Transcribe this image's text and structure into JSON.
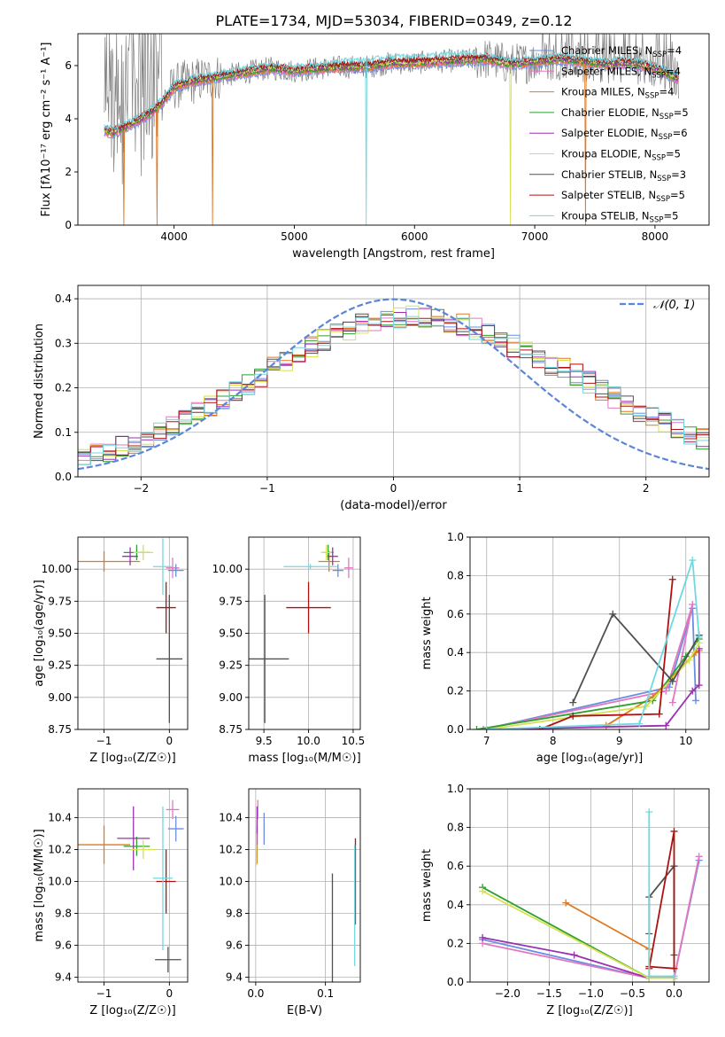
{
  "title": "PLATE=1734, MJD=53034, FIBERID=0349, z=0.12",
  "colors": {
    "Chabrier MILES": "#6b8ee0",
    "Salpeter MILES": "#e377c2",
    "Kroupa MILES": "#e07820",
    "Chabrier ELODIE": "#2ca02c",
    "Salpeter ELODIE": "#9b30b0",
    "Kroupa ELODIE": "#d6e050",
    "Chabrier STELIB": "#505050",
    "Salpeter STELIB": "#b01010",
    "Kroupa STELIB": "#70d8e0",
    "normal": "#5a86d8"
  },
  "chart_data": [
    {
      "type": "line",
      "name": "spectrum",
      "xlabel": "wavelength [Angstrom, rest frame]",
      "ylabel": "Flux [fλ10⁻¹⁷ erg cm⁻² s⁻¹ A⁻¹]",
      "xlim": [
        3200,
        8450
      ],
      "ylim": [
        0,
        7.2
      ],
      "xticks": [
        4000,
        5000,
        6000,
        7000,
        8000
      ],
      "yticks": [
        0,
        2,
        4,
        6
      ],
      "grid": false,
      "legend_position": "top-right",
      "legend": [
        {
          "model": "Chabrier MILES",
          "label": "Chabrier MILES, N_SSP=4"
        },
        {
          "model": "Salpeter MILES",
          "label": "Salpeter MILES, N_SSP=4"
        },
        {
          "model": "Kroupa MILES",
          "label": "Kroupa MILES, N_SSP=4"
        },
        {
          "model": "Chabrier ELODIE",
          "label": "Chabrier ELODIE, N_SSP=5"
        },
        {
          "model": "Salpeter ELODIE",
          "label": "Salpeter ELODIE, N_SSP=6"
        },
        {
          "model": "Kroupa ELODIE",
          "label": "Kroupa ELODIE, N_SSP=5"
        },
        {
          "model": "Chabrier STELIB",
          "label": "Chabrier STELIB, N_SSP=3"
        },
        {
          "model": "Salpeter STELIB",
          "label": "Salpeter STELIB, N_SSP=5"
        },
        {
          "model": "Kroupa STELIB",
          "label": "Kroupa STELIB, N_SSP=5"
        }
      ],
      "data_color": "#808080",
      "continuum": {
        "x": [
          3420,
          3500,
          3600,
          3700,
          3800,
          3900,
          4000,
          4100,
          4200,
          4400,
          4600,
          4800,
          5000,
          5200,
          5400,
          5600,
          5800,
          6000,
          6200,
          6400,
          6600,
          6800,
          7000,
          7200,
          7400,
          7600,
          7800,
          8000,
          8200
        ],
        "y": [
          3.55,
          3.5,
          3.7,
          3.95,
          4.2,
          4.6,
          5.2,
          5.35,
          5.45,
          5.6,
          5.75,
          5.9,
          5.8,
          5.9,
          5.95,
          5.95,
          6.1,
          6.1,
          6.15,
          6.2,
          6.25,
          6.05,
          6.15,
          6.25,
          6.15,
          6.05,
          6.1,
          5.9,
          5.5
        ]
      },
      "drops": [
        {
          "x": 3580,
          "model": "Kroupa MILES"
        },
        {
          "x": 3860,
          "model": "Kroupa MILES"
        },
        {
          "x": 4320,
          "model": "Kroupa MILES"
        },
        {
          "x": 5600,
          "model": "Kroupa STELIB"
        },
        {
          "x": 6800,
          "model": "Kroupa ELODIE"
        },
        {
          "x": 7420,
          "model": "Kroupa MILES"
        }
      ]
    },
    {
      "type": "histogram",
      "name": "residuals",
      "xlabel": "(data-model)/error",
      "ylabel": "Normed distribution",
      "xlim": [
        -2.5,
        2.5
      ],
      "ylim": [
        0,
        0.43
      ],
      "xticks": [
        -2,
        -1,
        0,
        1,
        2
      ],
      "yticks": [
        0,
        0.1,
        0.2,
        0.3,
        0.4
      ],
      "grid": true,
      "legend_position": "top-right",
      "normal_label": "𝒩(0, 1)",
      "bin_width": 0.1,
      "bin_start": -2.5
    },
    {
      "type": "scatter",
      "name": "age-vs-Z",
      "xlabel": "Z [log₁₀(Z/Z☉)]",
      "ylabel": "age  [log₁₀(age/yr)]",
      "xlim": [
        -1.4,
        0.28
      ],
      "ylim": [
        8.75,
        10.25
      ],
      "xticks": [
        -1,
        0
      ],
      "yticks": [
        8.75,
        9.0,
        9.25,
        9.5,
        9.75,
        10.0
      ],
      "grid": true,
      "points": [
        {
          "model": "Kroupa MILES",
          "x": -1.0,
          "y": 10.06,
          "xerr": 0.55,
          "yerr": 0.08
        },
        {
          "model": "Salpeter MILES",
          "x": 0.05,
          "y": 10.01,
          "xerr": 0.1,
          "yerr": 0.08
        },
        {
          "model": "Chabrier MILES",
          "x": 0.1,
          "y": 9.99,
          "xerr": 0.12,
          "yerr": 0.05
        },
        {
          "model": "Chabrier ELODIE",
          "x": -0.5,
          "y": 10.13,
          "xerr": 0.2,
          "yerr": 0.06
        },
        {
          "model": "Salpeter ELODIE",
          "x": -0.6,
          "y": 10.1,
          "xerr": 0.12,
          "yerr": 0.07
        },
        {
          "model": "Kroupa ELODIE",
          "x": -0.4,
          "y": 10.13,
          "xerr": 0.15,
          "yerr": 0.06
        },
        {
          "model": "Chabrier STELIB",
          "x": 0.0,
          "y": 9.3,
          "xerr": 0.2,
          "yerr": 0.5
        },
        {
          "model": "Salpeter STELIB",
          "x": -0.05,
          "y": 9.7,
          "xerr": 0.15,
          "yerr": 0.2
        },
        {
          "model": "Kroupa STELIB",
          "x": -0.1,
          "y": 10.02,
          "xerr": 0.15,
          "yerr": 0.22
        }
      ]
    },
    {
      "type": "scatter",
      "name": "age-vs-mass",
      "xlabel": "mass [log₁₀(M/M☉)]",
      "ylabel": "",
      "xlim": [
        9.33,
        10.58
      ],
      "ylim": [
        8.75,
        10.25
      ],
      "xticks": [
        9.5,
        10.0,
        10.5
      ],
      "yticks": [
        8.75,
        9.0,
        9.25,
        9.5,
        9.75,
        10.0
      ],
      "grid": true,
      "points": [
        {
          "model": "Kroupa MILES",
          "x": 10.23,
          "y": 10.06,
          "xerr": 0.12,
          "yerr": 0.08
        },
        {
          "model": "Salpeter MILES",
          "x": 10.45,
          "y": 10.01,
          "xerr": 0.05,
          "yerr": 0.08
        },
        {
          "model": "Chabrier MILES",
          "x": 10.33,
          "y": 9.99,
          "xerr": 0.06,
          "yerr": 0.05
        },
        {
          "model": "Chabrier ELODIE",
          "x": 10.22,
          "y": 10.13,
          "xerr": 0.06,
          "yerr": 0.06
        },
        {
          "model": "Salpeter ELODIE",
          "x": 10.27,
          "y": 10.1,
          "xerr": 0.06,
          "yerr": 0.07
        },
        {
          "model": "Kroupa ELODIE",
          "x": 10.2,
          "y": 10.13,
          "xerr": 0.06,
          "yerr": 0.06
        },
        {
          "model": "Chabrier STELIB",
          "x": 9.51,
          "y": 9.3,
          "xerr": 0.27,
          "yerr": 0.5
        },
        {
          "model": "Salpeter STELIB",
          "x": 10.0,
          "y": 9.7,
          "xerr": 0.25,
          "yerr": 0.2
        },
        {
          "model": "Kroupa STELIB",
          "x": 10.02,
          "y": 10.02,
          "xerr": 0.3,
          "yerr": 0.02
        }
      ]
    },
    {
      "type": "line",
      "name": "weight-vs-age",
      "xlabel": "age  [log₁₀(age/yr)]",
      "ylabel": "mass weight",
      "xlim": [
        6.75,
        10.35
      ],
      "ylim": [
        0,
        1.0
      ],
      "xticks": [
        7,
        8,
        9,
        10
      ],
      "yticks": [
        0,
        0.2,
        0.4,
        0.6,
        0.8,
        1.0
      ],
      "grid": true,
      "series": [
        {
          "model": "Chabrier MILES",
          "x": [
            6.95,
            9.75,
            10.1,
            10.15
          ],
          "y": [
            0.0,
            0.22,
            0.63,
            0.15
          ]
        },
        {
          "model": "Salpeter MILES",
          "x": [
            6.95,
            9.7,
            10.1,
            9.8
          ],
          "y": [
            0.0,
            0.2,
            0.65,
            0.14
          ]
        },
        {
          "model": "Kroupa MILES",
          "x": [
            8.8,
            9.5,
            10.15,
            10.2
          ],
          "y": [
            0.02,
            0.17,
            0.4,
            0.41
          ]
        },
        {
          "model": "Chabrier ELODIE",
          "x": [
            6.85,
            9.5,
            10.0,
            10.2
          ],
          "y": [
            0.0,
            0.15,
            0.38,
            0.47
          ]
        },
        {
          "model": "Salpeter ELODIE",
          "x": [
            7.0,
            9.7,
            10.1,
            10.2,
            10.2
          ],
          "y": [
            0.0,
            0.02,
            0.2,
            0.23,
            0.42
          ]
        },
        {
          "model": "Kroupa ELODIE",
          "x": [
            7.0,
            9.4,
            10.05,
            10.2
          ],
          "y": [
            0.0,
            0.12,
            0.36,
            0.45
          ]
        },
        {
          "model": "Chabrier STELIB",
          "x": [
            8.3,
            8.9,
            9.8,
            10.2
          ],
          "y": [
            0.14,
            0.6,
            0.25,
            0.49
          ]
        },
        {
          "model": "Salpeter STELIB",
          "x": [
            7.8,
            8.3,
            9.6,
            9.8
          ],
          "y": [
            0.0,
            0.07,
            0.08,
            0.78
          ]
        },
        {
          "model": "Kroupa STELIB",
          "x": [
            7.0,
            9.3,
            10.1,
            10.2
          ],
          "y": [
            0.0,
            0.03,
            0.88,
            0.48
          ]
        }
      ]
    },
    {
      "type": "scatter",
      "name": "mass-vs-Z",
      "xlabel": "Z [log₁₀(Z/Z☉)]",
      "ylabel": "mass [log₁₀(M/M☉)]",
      "xlim": [
        -1.4,
        0.28
      ],
      "ylim": [
        9.37,
        10.58
      ],
      "xticks": [
        -1,
        0
      ],
      "yticks": [
        9.4,
        9.6,
        9.8,
        10.0,
        10.2,
        10.4
      ],
      "grid": true,
      "points": [
        {
          "model": "Kroupa MILES",
          "x": -1.0,
          "y": 10.23,
          "xerr": 0.4,
          "yerr": 0.12
        },
        {
          "model": "Salpeter MILES",
          "x": 0.05,
          "y": 10.45,
          "xerr": 0.1,
          "yerr": 0.06
        },
        {
          "model": "Chabrier MILES",
          "x": 0.1,
          "y": 10.33,
          "xerr": 0.12,
          "yerr": 0.08
        },
        {
          "model": "Chabrier ELODIE",
          "x": -0.5,
          "y": 10.22,
          "xerr": 0.2,
          "yerr": 0.06
        },
        {
          "model": "Salpeter ELODIE",
          "x": -0.55,
          "y": 10.27,
          "xerr": 0.25,
          "yerr": 0.2
        },
        {
          "model": "Kroupa ELODIE",
          "x": -0.4,
          "y": 10.2,
          "xerr": 0.2,
          "yerr": 0.06
        },
        {
          "model": "Chabrier STELIB",
          "x": -0.02,
          "y": 9.51,
          "xerr": 0.2,
          "yerr": 0.08
        },
        {
          "model": "Salpeter STELIB",
          "x": -0.05,
          "y": 10.0,
          "xerr": 0.15,
          "yerr": 0.2
        },
        {
          "model": "Kroupa STELIB",
          "x": -0.1,
          "y": 10.02,
          "xerr": 0.15,
          "yerr": 0.45
        }
      ]
    },
    {
      "type": "scatter",
      "name": "mass-vs-EBV",
      "xlabel": "E(B-V)",
      "ylabel": "",
      "xlim": [
        -0.01,
        0.15
      ],
      "ylim": [
        9.37,
        10.58
      ],
      "xticks": [
        0.0,
        0.1
      ],
      "yticks": [
        9.4,
        9.6,
        9.8,
        10.0,
        10.2,
        10.4
      ],
      "grid": true,
      "points": [
        {
          "model": "Kroupa MILES",
          "x": 0.002,
          "y": 10.23,
          "xerr": 0.0,
          "yerr": 0.12
        },
        {
          "model": "Salpeter MILES",
          "x": 0.003,
          "y": 10.45,
          "xerr": 0.0,
          "yerr": 0.06
        },
        {
          "model": "Chabrier MILES",
          "x": 0.012,
          "y": 10.33,
          "xerr": 0.0,
          "yerr": 0.1
        },
        {
          "model": "Chabrier ELODIE",
          "x": 0.001,
          "y": 10.22,
          "xerr": 0.0,
          "yerr": 0.06
        },
        {
          "model": "Salpeter ELODIE",
          "x": 0.002,
          "y": 10.35,
          "xerr": 0.0,
          "yerr": 0.12
        },
        {
          "model": "Kroupa ELODIE",
          "x": 0.001,
          "y": 10.2,
          "xerr": 0.0,
          "yerr": 0.1
        },
        {
          "model": "Chabrier STELIB",
          "x": 0.11,
          "y": 9.6,
          "xerr": 0.0,
          "yerr": 0.45
        },
        {
          "model": "Salpeter STELIB",
          "x": 0.143,
          "y": 10.0,
          "xerr": 0.0,
          "yerr": 0.27
        },
        {
          "model": "Kroupa STELIB",
          "x": 0.142,
          "y": 9.85,
          "xerr": 0.0,
          "yerr": 0.38
        }
      ]
    },
    {
      "type": "line",
      "name": "weight-vs-Z",
      "xlabel": "Z [log₁₀(Z/Z☉)]",
      "ylabel": "mass weight",
      "xlim": [
        -2.45,
        0.42
      ],
      "ylim": [
        0,
        1.0
      ],
      "xticks": [
        -2.0,
        -1.5,
        -1.0,
        -0.5,
        0.0
      ],
      "yticks": [
        0,
        0.2,
        0.4,
        0.6,
        0.8,
        1.0
      ],
      "grid": true,
      "series": [
        {
          "model": "Chabrier MILES",
          "x": [
            -2.3,
            -0.3,
            0.0,
            0.3
          ],
          "y": [
            0.22,
            0.02,
            0.02,
            0.63
          ]
        },
        {
          "model": "Salpeter MILES",
          "x": [
            -2.3,
            -0.3,
            0.0,
            0.3
          ],
          "y": [
            0.2,
            0.02,
            0.02,
            0.65
          ]
        },
        {
          "model": "Kroupa MILES",
          "x": [
            -1.3,
            -0.3,
            -0.3,
            0.0
          ],
          "y": [
            0.41,
            0.17,
            0.02,
            0.02
          ]
        },
        {
          "model": "Chabrier ELODIE",
          "x": [
            -2.3,
            -0.3,
            0.0
          ],
          "y": [
            0.49,
            0.02,
            0.02
          ]
        },
        {
          "model": "Salpeter ELODIE",
          "x": [
            -2.3,
            -1.2,
            -0.3,
            0.0
          ],
          "y": [
            0.23,
            0.14,
            0.02,
            0.02
          ]
        },
        {
          "model": "Kroupa ELODIE",
          "x": [
            -2.3,
            -0.3,
            0.0
          ],
          "y": [
            0.47,
            0.02,
            0.02
          ]
        },
        {
          "model": "Chabrier STELIB",
          "x": [
            -0.3,
            -0.3,
            0.0,
            0.0
          ],
          "y": [
            0.25,
            0.44,
            0.6,
            0.14
          ]
        },
        {
          "model": "Salpeter STELIB",
          "x": [
            -0.3,
            0.0,
            0.0,
            -0.3
          ],
          "y": [
            0.08,
            0.07,
            0.78,
            0.07
          ]
        },
        {
          "model": "Kroupa STELIB",
          "x": [
            -0.3,
            -0.3,
            0.0,
            0.0
          ],
          "y": [
            0.88,
            0.03,
            0.03,
            0.03
          ]
        }
      ]
    }
  ]
}
